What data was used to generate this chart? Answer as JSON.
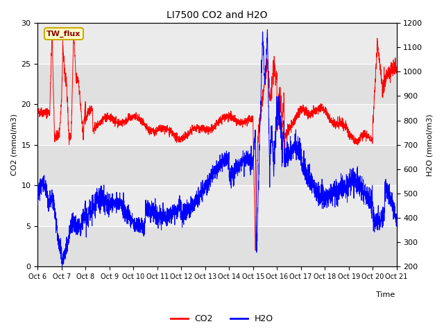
{
  "title": "LI7500 CO2 and H2O",
  "xlabel": "Time",
  "ylabel_left": "CO2 (mmol/m3)",
  "ylabel_right": "H2O (mmol/m3)",
  "legend_label": "TW_flux",
  "co2_color": "#FF0000",
  "h2o_color": "#0000FF",
  "background_color": "#FFFFFF",
  "plot_bg_color": "#E0E0E0",
  "band_light_color": "#EBEBEB",
  "x_tick_labels": [
    "Oct 6",
    "Oct 7",
    "Oct 8",
    "Oct 9",
    "Oct 10",
    "Oct 11",
    "Oct 12",
    "Oct 13",
    "Oct 14",
    "Oct 15",
    "Oct 16",
    "Oct 17",
    "Oct 18",
    "Oct 19",
    "Oct 20",
    "Oct 21"
  ],
  "co2_ylim": [
    0,
    30
  ],
  "h2o_ylim": [
    200,
    1200
  ],
  "co2_yticks": [
    0,
    5,
    10,
    15,
    20,
    25,
    30
  ],
  "h2o_yticks": [
    200,
    300,
    400,
    500,
    600,
    700,
    800,
    900,
    1000,
    1100,
    1200
  ]
}
